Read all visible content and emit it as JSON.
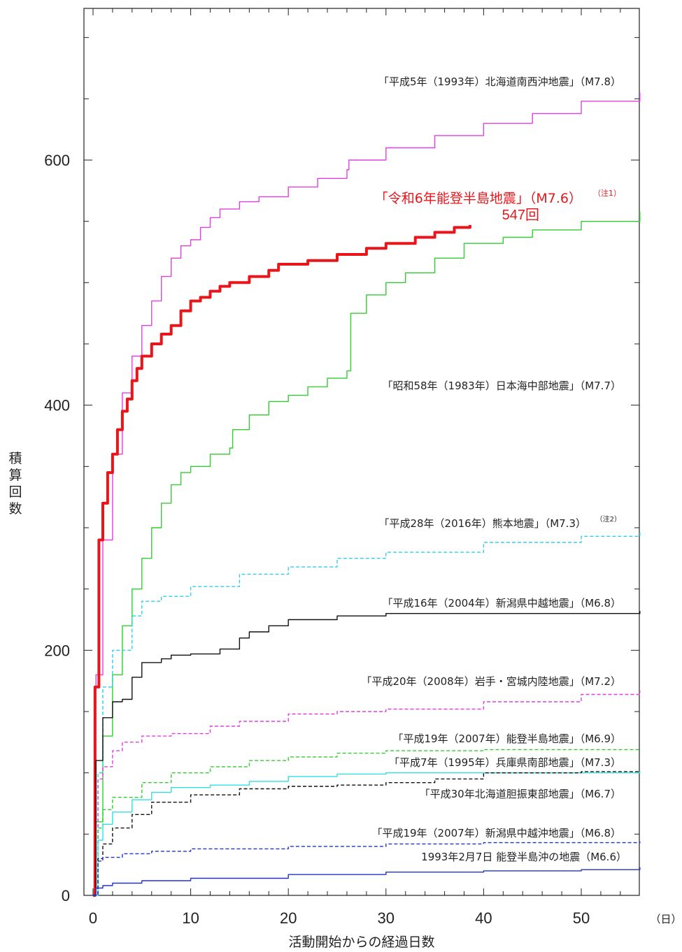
{
  "chart_data": {
    "type": "line",
    "xlabel": "活動開始からの経過日数",
    "xunit": "（日）",
    "ylabel": "積算回数",
    "xlim": [
      0,
      56
    ],
    "ylim": [
      0,
      720
    ],
    "xticks": [
      0,
      10,
      20,
      30,
      40,
      50
    ],
    "yticks": [
      0,
      200,
      400,
      600
    ],
    "series": [
      {
        "name": "「平成5年（1993年）北海道南西沖地震」（M7.8）",
        "color": "#e040e0",
        "dash": "solid",
        "points": [
          [
            0,
            0
          ],
          [
            0.3,
            180
          ],
          [
            1,
            290
          ],
          [
            2,
            360
          ],
          [
            3,
            410
          ],
          [
            4,
            440
          ],
          [
            5,
            465
          ],
          [
            6,
            485
          ],
          [
            7,
            505
          ],
          [
            8,
            520
          ],
          [
            9,
            530
          ],
          [
            10,
            535
          ],
          [
            11,
            545
          ],
          [
            12,
            553
          ],
          [
            13,
            560
          ],
          [
            15,
            566
          ],
          [
            17,
            570
          ],
          [
            20,
            578
          ],
          [
            23,
            585
          ],
          [
            26,
            592
          ],
          [
            26.2,
            600
          ],
          [
            30,
            610
          ],
          [
            35,
            620
          ],
          [
            40,
            630
          ],
          [
            45,
            638
          ],
          [
            50,
            648
          ],
          [
            56,
            655
          ]
        ]
      },
      {
        "name": "「令和6年能登半島地震」（M7.6）",
        "note": "（注1）",
        "count_label": "547回",
        "color": "#e8161b",
        "dash": "solid",
        "bold": true,
        "points": [
          [
            0,
            0
          ],
          [
            0.2,
            170
          ],
          [
            0.6,
            290
          ],
          [
            1,
            320
          ],
          [
            1.5,
            345
          ],
          [
            2,
            360
          ],
          [
            2.5,
            380
          ],
          [
            3,
            395
          ],
          [
            3.5,
            405
          ],
          [
            4,
            420
          ],
          [
            4.5,
            430
          ],
          [
            5,
            440
          ],
          [
            6,
            450
          ],
          [
            7,
            458
          ],
          [
            8,
            465
          ],
          [
            9,
            477
          ],
          [
            10,
            485
          ],
          [
            11,
            488
          ],
          [
            12,
            493
          ],
          [
            13,
            497
          ],
          [
            14,
            500
          ],
          [
            16,
            505
          ],
          [
            18,
            510
          ],
          [
            19,
            515
          ],
          [
            22,
            518
          ],
          [
            25,
            523
          ],
          [
            28,
            528
          ],
          [
            30,
            532
          ],
          [
            33,
            537
          ],
          [
            35,
            541
          ],
          [
            37,
            545
          ],
          [
            38.6,
            547
          ]
        ]
      },
      {
        "name": "「昭和58年（1983年）日本海中部地震」（M7.7）",
        "color": "#33cc33",
        "dash": "solid",
        "points": [
          [
            0,
            0
          ],
          [
            0.3,
            60
          ],
          [
            1,
            130
          ],
          [
            2,
            180
          ],
          [
            3,
            220
          ],
          [
            4,
            250
          ],
          [
            5,
            275
          ],
          [
            6,
            300
          ],
          [
            7,
            320
          ],
          [
            8,
            335
          ],
          [
            9,
            345
          ],
          [
            10,
            350
          ],
          [
            12,
            360
          ],
          [
            14,
            365
          ],
          [
            14.3,
            380
          ],
          [
            16,
            392
          ],
          [
            18,
            403
          ],
          [
            20,
            408
          ],
          [
            22,
            415
          ],
          [
            24,
            422
          ],
          [
            26,
            428
          ],
          [
            26.4,
            475
          ],
          [
            28,
            490
          ],
          [
            30,
            500
          ],
          [
            32,
            508
          ],
          [
            35,
            520
          ],
          [
            38,
            532
          ],
          [
            42,
            537
          ],
          [
            45,
            543
          ],
          [
            50,
            550
          ],
          [
            56,
            558
          ]
        ]
      },
      {
        "name": "「平成28年（2016年）熊本地震」（M7.3）",
        "note": "（注2）",
        "color": "#33ccee",
        "dash": "dashed",
        "points": [
          [
            0,
            0
          ],
          [
            0.5,
            100
          ],
          [
            1,
            170
          ],
          [
            2,
            200
          ],
          [
            4,
            228
          ],
          [
            5,
            240
          ],
          [
            7,
            244
          ],
          [
            10,
            252
          ],
          [
            15,
            262
          ],
          [
            20,
            268
          ],
          [
            25,
            275
          ],
          [
            30,
            280
          ],
          [
            40,
            288
          ],
          [
            50,
            293
          ],
          [
            56,
            297
          ]
        ]
      },
      {
        "name": "「平成16年（2004年）新潟県中越地震」（M6.8）",
        "color": "#111111",
        "dash": "solid",
        "points": [
          [
            0,
            0
          ],
          [
            0.3,
            110
          ],
          [
            1,
            145
          ],
          [
            2,
            158
          ],
          [
            3,
            160
          ],
          [
            4,
            178
          ],
          [
            5,
            190
          ],
          [
            7,
            193
          ],
          [
            8,
            196
          ],
          [
            10,
            197
          ],
          [
            13,
            201
          ],
          [
            15,
            210
          ],
          [
            16,
            215
          ],
          [
            18,
            220
          ],
          [
            20,
            225
          ],
          [
            25,
            228
          ],
          [
            30,
            230
          ],
          [
            40,
            230
          ],
          [
            56,
            232
          ]
        ]
      },
      {
        "name": "「平成20年（2008年）岩手・宮城内陸地震」（M7.2）",
        "color": "#e040e0",
        "dash": "dashed",
        "points": [
          [
            0,
            0
          ],
          [
            0.5,
            95
          ],
          [
            1,
            105
          ],
          [
            2,
            118
          ],
          [
            3,
            125
          ],
          [
            5,
            130
          ],
          [
            8,
            132
          ],
          [
            12,
            138
          ],
          [
            15,
            142
          ],
          [
            20,
            148
          ],
          [
            25,
            150
          ],
          [
            30,
            152
          ],
          [
            40,
            158
          ],
          [
            50,
            164
          ],
          [
            56,
            167
          ]
        ]
      },
      {
        "name": "「平成19年（2007年）能登半島地震」（M6.9）",
        "color": "#33cc33",
        "dash": "dashed",
        "points": [
          [
            0,
            0
          ],
          [
            0.5,
            55
          ],
          [
            1,
            70
          ],
          [
            2,
            80
          ],
          [
            5,
            92
          ],
          [
            8,
            100
          ],
          [
            12,
            105
          ],
          [
            16,
            110
          ],
          [
            20,
            113
          ],
          [
            25,
            116
          ],
          [
            30,
            118
          ],
          [
            40,
            119
          ],
          [
            56,
            120
          ]
        ]
      },
      {
        "name": "「平成7年（1995年）兵庫県南部地震」（M7.3）",
        "color": "#33e0e0",
        "dash": "solid",
        "points": [
          [
            0,
            0
          ],
          [
            0.5,
            45
          ],
          [
            1,
            58
          ],
          [
            2,
            68
          ],
          [
            4,
            78
          ],
          [
            6,
            84
          ],
          [
            8,
            88
          ],
          [
            12,
            90
          ],
          [
            16,
            93
          ],
          [
            20,
            97
          ],
          [
            25,
            99
          ],
          [
            30,
            100
          ],
          [
            40,
            100
          ],
          [
            56,
            101
          ]
        ]
      },
      {
        "name": "「平成30年北海道胆振東部地震」（M6.7）",
        "color": "#111111",
        "dash": "dashed",
        "points": [
          [
            0,
            0
          ],
          [
            0.5,
            30
          ],
          [
            1,
            42
          ],
          [
            2,
            55
          ],
          [
            4,
            66
          ],
          [
            6,
            76
          ],
          [
            10,
            82
          ],
          [
            15,
            87
          ],
          [
            20,
            89
          ],
          [
            25,
            90
          ],
          [
            30,
            92
          ],
          [
            35,
            95
          ],
          [
            40,
            100
          ],
          [
            50,
            101
          ],
          [
            56,
            101
          ]
        ]
      },
      {
        "name": "「平成19年（2007年）新潟県中越沖地震」（M6.8）",
        "color": "#2233cc",
        "dash": "dashed",
        "points": [
          [
            0,
            0
          ],
          [
            0.5,
            28
          ],
          [
            1,
            31
          ],
          [
            3,
            34
          ],
          [
            6,
            36
          ],
          [
            10,
            38
          ],
          [
            20,
            40
          ],
          [
            30,
            42
          ],
          [
            40,
            43
          ],
          [
            56,
            44
          ]
        ]
      },
      {
        "name": "1993年2月7日 能登半島沖の地震（M6.6）",
        "color": "#2233cc",
        "dash": "solid",
        "points": [
          [
            0,
            0
          ],
          [
            0.3,
            6
          ],
          [
            1,
            8
          ],
          [
            2,
            10
          ],
          [
            5,
            12
          ],
          [
            10,
            14
          ],
          [
            20,
            17
          ],
          [
            30,
            19
          ],
          [
            40,
            20
          ],
          [
            50,
            21
          ],
          [
            56,
            23
          ]
        ]
      }
    ]
  }
}
